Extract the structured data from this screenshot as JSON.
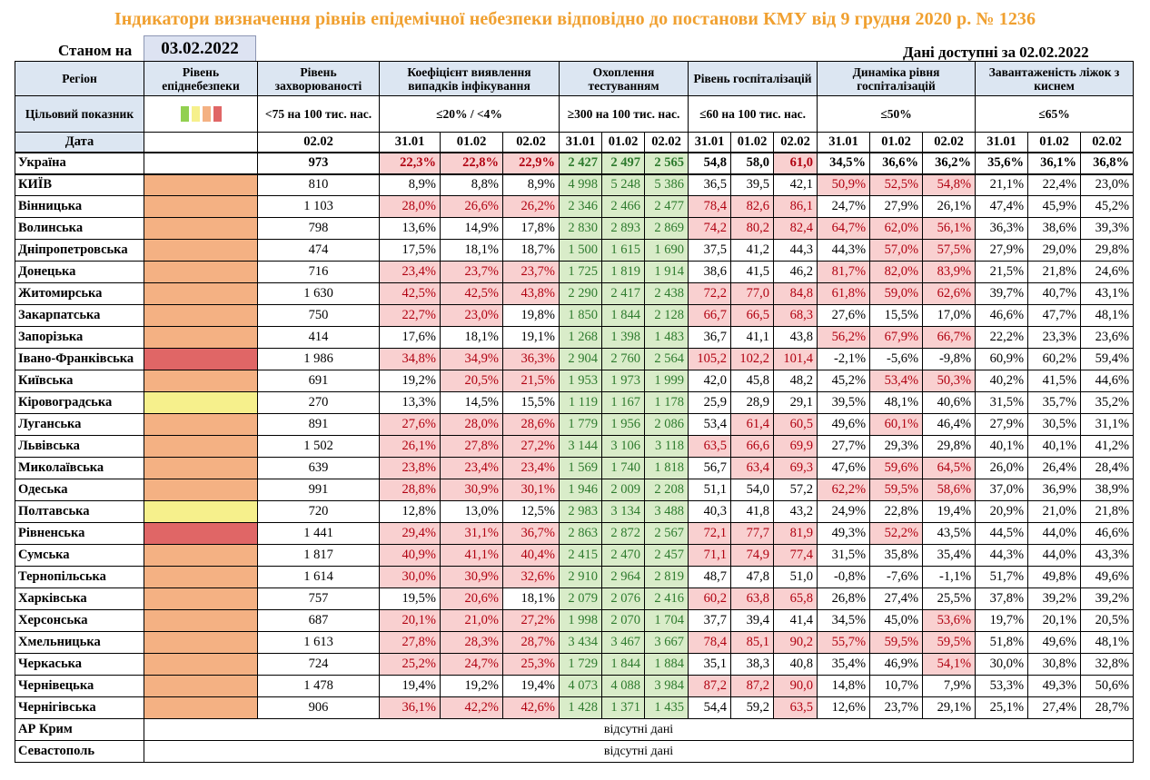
{
  "title": "Індикатори визначення рівнів епідемічної небезпеки відповідно до постанови КМУ від 9 грудня 2020 р. № 1236",
  "as_of_label": "Станом на",
  "as_of_date": "03.02.2022",
  "available_label": "Дані доступні за",
  "available_date": "02.02.2022",
  "headers": {
    "region": "Регіон",
    "level": "Рівень епіднебезпеки",
    "incidence": "Рівень захворюваності",
    "detection": "Коефіцієнт виявлення випадків інфікування",
    "testing": "Охоплення тестуванням",
    "hosp": "Рівень госпіталізацій",
    "hosp_dyn": "Динаміка рівня госпіталізацій",
    "beds": "Завантаженість ліжок з киснем"
  },
  "targets": {
    "label": "Цільовий показник",
    "incidence": "<75 на 100 тис. нас.",
    "detection": "≤20% / <4%",
    "testing": "≥300 на 100 тис. нас.",
    "hosp": "≤60 на 100 тис. нас.",
    "hosp_dyn": "≤50%",
    "beds": "≤65%"
  },
  "dates": {
    "label": "Дата",
    "incidence": "02.02",
    "d1": "31.01",
    "d2": "01.02",
    "d3": "02.02"
  },
  "colors": {
    "orange": "#f4b183",
    "red": "#e06666",
    "yellow": "#f6f08c",
    "green": "#92d050"
  },
  "rows": [
    {
      "region": "Україна",
      "level": "",
      "inc": "973",
      "det": [
        "22,3%",
        "22,8%",
        "22,9%"
      ],
      "test": [
        "2 427",
        "2 497",
        "2 565"
      ],
      "hosp": [
        "54,8",
        "58,0",
        "61,0"
      ],
      "dyn": [
        "34,5%",
        "36,6%",
        "36,2%"
      ],
      "beds": [
        "35,6%",
        "36,1%",
        "36,8%"
      ]
    },
    {
      "region": "КИЇВ",
      "level": "orange",
      "inc": "810",
      "det": [
        "8,9%",
        "8,8%",
        "8,9%"
      ],
      "test": [
        "4 998",
        "5 248",
        "5 386"
      ],
      "hosp": [
        "36,5",
        "39,5",
        "42,1"
      ],
      "dyn": [
        "50,9%",
        "52,5%",
        "54,8%"
      ],
      "beds": [
        "21,1%",
        "22,4%",
        "23,0%"
      ]
    },
    {
      "region": "Вінницька",
      "level": "orange",
      "inc": "1 103",
      "det": [
        "28,0%",
        "26,6%",
        "26,2%"
      ],
      "test": [
        "2 346",
        "2 466",
        "2 477"
      ],
      "hosp": [
        "78,4",
        "82,6",
        "86,1"
      ],
      "dyn": [
        "24,7%",
        "27,9%",
        "26,1%"
      ],
      "beds": [
        "47,4%",
        "45,9%",
        "45,2%"
      ]
    },
    {
      "region": "Волинська",
      "level": "orange",
      "inc": "798",
      "det": [
        "13,6%",
        "14,9%",
        "17,8%"
      ],
      "test": [
        "2 830",
        "2 893",
        "2 869"
      ],
      "hosp": [
        "74,2",
        "80,2",
        "82,4"
      ],
      "dyn": [
        "64,7%",
        "62,0%",
        "56,1%"
      ],
      "beds": [
        "36,3%",
        "38,6%",
        "39,3%"
      ]
    },
    {
      "region": "Дніпропетровська",
      "level": "orange",
      "inc": "474",
      "det": [
        "17,5%",
        "18,1%",
        "18,7%"
      ],
      "test": [
        "1 500",
        "1 615",
        "1 690"
      ],
      "hosp": [
        "37,5",
        "41,2",
        "44,3"
      ],
      "dyn": [
        "44,3%",
        "57,0%",
        "57,5%"
      ],
      "beds": [
        "27,9%",
        "29,0%",
        "29,8%"
      ]
    },
    {
      "region": "Донецька",
      "level": "orange",
      "inc": "716",
      "det": [
        "23,4%",
        "23,7%",
        "23,7%"
      ],
      "test": [
        "1 725",
        "1 819",
        "1 914"
      ],
      "hosp": [
        "38,6",
        "41,5",
        "46,2"
      ],
      "dyn": [
        "81,7%",
        "82,0%",
        "83,9%"
      ],
      "beds": [
        "21,5%",
        "21,8%",
        "24,6%"
      ]
    },
    {
      "region": "Житомирська",
      "level": "orange",
      "inc": "1 630",
      "det": [
        "42,5%",
        "42,5%",
        "43,8%"
      ],
      "test": [
        "2 290",
        "2 417",
        "2 438"
      ],
      "hosp": [
        "72,2",
        "77,0",
        "84,8"
      ],
      "dyn": [
        "61,8%",
        "59,0%",
        "62,6%"
      ],
      "beds": [
        "39,7%",
        "40,7%",
        "43,1%"
      ]
    },
    {
      "region": "Закарпатська",
      "level": "orange",
      "inc": "750",
      "det": [
        "22,7%",
        "23,0%",
        "19,8%"
      ],
      "test": [
        "1 850",
        "1 844",
        "2 128"
      ],
      "hosp": [
        "66,7",
        "66,5",
        "68,3"
      ],
      "dyn": [
        "27,6%",
        "15,5%",
        "17,0%"
      ],
      "beds": [
        "46,6%",
        "47,7%",
        "48,1%"
      ]
    },
    {
      "region": "Запорізька",
      "level": "orange",
      "inc": "414",
      "det": [
        "17,6%",
        "18,1%",
        "19,1%"
      ],
      "test": [
        "1 268",
        "1 398",
        "1 483"
      ],
      "hosp": [
        "36,7",
        "41,1",
        "43,8"
      ],
      "dyn": [
        "56,2%",
        "67,9%",
        "66,7%"
      ],
      "beds": [
        "22,2%",
        "23,3%",
        "23,6%"
      ]
    },
    {
      "region": "Івано-Франківська",
      "level": "red",
      "inc": "1 986",
      "det": [
        "34,8%",
        "34,9%",
        "36,3%"
      ],
      "test": [
        "2 904",
        "2 760",
        "2 564"
      ],
      "hosp": [
        "105,2",
        "102,2",
        "101,4"
      ],
      "dyn": [
        "-2,1%",
        "-5,6%",
        "-9,8%"
      ],
      "beds": [
        "60,9%",
        "60,2%",
        "59,4%"
      ]
    },
    {
      "region": "Київська",
      "level": "orange",
      "inc": "691",
      "det": [
        "19,2%",
        "20,5%",
        "21,5%"
      ],
      "test": [
        "1 953",
        "1 973",
        "1 999"
      ],
      "hosp": [
        "42,0",
        "45,8",
        "48,2"
      ],
      "dyn": [
        "45,2%",
        "53,4%",
        "50,3%"
      ],
      "beds": [
        "40,2%",
        "41,5%",
        "44,6%"
      ]
    },
    {
      "region": "Кіровоградська",
      "level": "yellow",
      "inc": "270",
      "det": [
        "13,3%",
        "14,5%",
        "15,5%"
      ],
      "test": [
        "1 119",
        "1 167",
        "1 178"
      ],
      "hosp": [
        "25,9",
        "28,9",
        "29,1"
      ],
      "dyn": [
        "39,5%",
        "48,1%",
        "40,6%"
      ],
      "beds": [
        "31,5%",
        "35,7%",
        "35,2%"
      ]
    },
    {
      "region": "Луганська",
      "level": "orange",
      "inc": "891",
      "det": [
        "27,6%",
        "28,0%",
        "28,6%"
      ],
      "test": [
        "1 779",
        "1 956",
        "2 086"
      ],
      "hosp": [
        "53,4",
        "61,4",
        "60,5"
      ],
      "dyn": [
        "49,6%",
        "60,1%",
        "46,4%"
      ],
      "beds": [
        "27,9%",
        "30,5%",
        "31,1%"
      ]
    },
    {
      "region": "Львівська",
      "level": "orange",
      "inc": "1 502",
      "det": [
        "26,1%",
        "27,8%",
        "27,2%"
      ],
      "test": [
        "3 144",
        "3 106",
        "3 118"
      ],
      "hosp": [
        "63,5",
        "66,6",
        "69,9"
      ],
      "dyn": [
        "27,7%",
        "29,3%",
        "29,8%"
      ],
      "beds": [
        "40,1%",
        "40,1%",
        "41,2%"
      ]
    },
    {
      "region": "Миколаївська",
      "level": "orange",
      "inc": "639",
      "det": [
        "23,8%",
        "23,4%",
        "23,4%"
      ],
      "test": [
        "1 569",
        "1 740",
        "1 818"
      ],
      "hosp": [
        "56,7",
        "63,4",
        "69,3"
      ],
      "dyn": [
        "47,6%",
        "59,6%",
        "64,5%"
      ],
      "beds": [
        "26,0%",
        "26,4%",
        "28,4%"
      ]
    },
    {
      "region": "Одеська",
      "level": "orange",
      "inc": "991",
      "det": [
        "28,8%",
        "30,9%",
        "30,1%"
      ],
      "test": [
        "1 946",
        "2 009",
        "2 208"
      ],
      "hosp": [
        "51,1",
        "54,0",
        "57,2"
      ],
      "dyn": [
        "62,2%",
        "59,5%",
        "58,6%"
      ],
      "beds": [
        "37,0%",
        "36,9%",
        "38,9%"
      ]
    },
    {
      "region": "Полтавська",
      "level": "yellow",
      "inc": "720",
      "det": [
        "12,8%",
        "13,0%",
        "12,5%"
      ],
      "test": [
        "2 983",
        "3 134",
        "3 488"
      ],
      "hosp": [
        "40,3",
        "41,8",
        "43,2"
      ],
      "dyn": [
        "24,9%",
        "22,8%",
        "19,4%"
      ],
      "beds": [
        "20,9%",
        "21,0%",
        "21,8%"
      ]
    },
    {
      "region": "Рівненська",
      "level": "red",
      "inc": "1 441",
      "det": [
        "29,4%",
        "31,1%",
        "36,7%"
      ],
      "test": [
        "2 863",
        "2 872",
        "2 567"
      ],
      "hosp": [
        "72,1",
        "77,7",
        "81,9"
      ],
      "dyn": [
        "49,3%",
        "52,2%",
        "43,5%"
      ],
      "beds": [
        "44,5%",
        "44,0%",
        "46,6%"
      ]
    },
    {
      "region": "Сумська",
      "level": "orange",
      "inc": "1 817",
      "det": [
        "40,9%",
        "41,1%",
        "40,4%"
      ],
      "test": [
        "2 415",
        "2 470",
        "2 457"
      ],
      "hosp": [
        "71,1",
        "74,9",
        "77,4"
      ],
      "dyn": [
        "31,5%",
        "35,8%",
        "35,4%"
      ],
      "beds": [
        "44,3%",
        "44,0%",
        "43,3%"
      ]
    },
    {
      "region": "Тернопільська",
      "level": "orange",
      "inc": "1 614",
      "det": [
        "30,0%",
        "30,9%",
        "32,6%"
      ],
      "test": [
        "2 910",
        "2 964",
        "2 819"
      ],
      "hosp": [
        "48,7",
        "47,8",
        "51,0"
      ],
      "dyn": [
        "-0,8%",
        "-7,6%",
        "-1,1%"
      ],
      "beds": [
        "51,7%",
        "49,8%",
        "49,6%"
      ]
    },
    {
      "region": "Харківська",
      "level": "orange",
      "inc": "757",
      "det": [
        "19,5%",
        "20,6%",
        "18,1%"
      ],
      "test": [
        "2 079",
        "2 076",
        "2 416"
      ],
      "hosp": [
        "60,2",
        "63,8",
        "65,8"
      ],
      "dyn": [
        "26,8%",
        "27,4%",
        "25,5%"
      ],
      "beds": [
        "37,8%",
        "39,2%",
        "39,2%"
      ]
    },
    {
      "region": "Херсонська",
      "level": "orange",
      "inc": "687",
      "det": [
        "20,1%",
        "21,0%",
        "27,2%"
      ],
      "test": [
        "1 998",
        "2 070",
        "1 704"
      ],
      "hosp": [
        "37,7",
        "39,4",
        "41,4"
      ],
      "dyn": [
        "34,5%",
        "45,0%",
        "53,6%"
      ],
      "beds": [
        "19,7%",
        "20,1%",
        "20,5%"
      ]
    },
    {
      "region": "Хмельницька",
      "level": "orange",
      "inc": "1 613",
      "det": [
        "27,8%",
        "28,3%",
        "28,7%"
      ],
      "test": [
        "3 434",
        "3 467",
        "3 667"
      ],
      "hosp": [
        "78,4",
        "85,1",
        "90,2"
      ],
      "dyn": [
        "55,7%",
        "59,5%",
        "59,5%"
      ],
      "beds": [
        "51,8%",
        "49,6%",
        "48,1%"
      ]
    },
    {
      "region": "Черкаська",
      "level": "orange",
      "inc": "724",
      "det": [
        "25,2%",
        "24,7%",
        "25,3%"
      ],
      "test": [
        "1 729",
        "1 844",
        "1 884"
      ],
      "hosp": [
        "35,1",
        "38,3",
        "40,8"
      ],
      "dyn": [
        "35,4%",
        "46,9%",
        "54,1%"
      ],
      "beds": [
        "30,0%",
        "30,8%",
        "32,8%"
      ]
    },
    {
      "region": "Чернівецька",
      "level": "orange",
      "inc": "1 478",
      "det": [
        "19,4%",
        "19,2%",
        "19,4%"
      ],
      "test": [
        "4 073",
        "4 088",
        "3 984"
      ],
      "hosp": [
        "87,2",
        "87,2",
        "90,0"
      ],
      "dyn": [
        "14,8%",
        "10,7%",
        "7,9%"
      ],
      "beds": [
        "53,3%",
        "49,3%",
        "50,6%"
      ]
    },
    {
      "region": "Чернігівська",
      "level": "orange",
      "inc": "906",
      "det": [
        "36,1%",
        "42,2%",
        "42,6%"
      ],
      "test": [
        "1 428",
        "1 371",
        "1 435"
      ],
      "hosp": [
        "54,4",
        "59,2",
        "63,5"
      ],
      "dyn": [
        "12,6%",
        "23,7%",
        "29,1%"
      ],
      "beds": [
        "25,1%",
        "27,4%",
        "28,7%"
      ]
    }
  ],
  "missing_rows": [
    {
      "region": "АР Крим",
      "text": "відсутні дані"
    },
    {
      "region": "Севастополь",
      "text": "відсутні дані"
    }
  ]
}
